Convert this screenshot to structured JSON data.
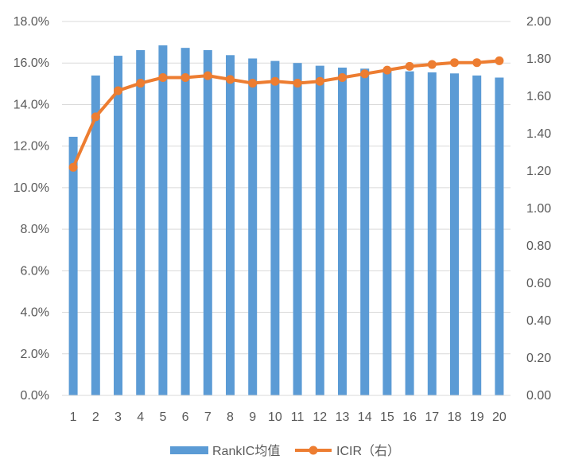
{
  "chart_data": {
    "type": "bar",
    "title": "",
    "xlabel": "",
    "ylabel": "",
    "categories": [
      "1",
      "2",
      "3",
      "4",
      "5",
      "6",
      "7",
      "8",
      "9",
      "10",
      "11",
      "12",
      "13",
      "14",
      "15",
      "16",
      "17",
      "18",
      "19",
      "20"
    ],
    "series": [
      {
        "name": "RankIC均值",
        "type": "bar",
        "axis": "left",
        "color": "#5B9BD5",
        "values": [
          12.45,
          15.4,
          16.35,
          16.62,
          16.85,
          16.73,
          16.62,
          16.38,
          16.22,
          16.1,
          16.0,
          15.87,
          15.78,
          15.73,
          15.65,
          15.6,
          15.55,
          15.5,
          15.4,
          15.3
        ]
      },
      {
        "name": "ICIR（右）",
        "type": "line",
        "axis": "right",
        "color": "#ED7D31",
        "values": [
          1.22,
          1.49,
          1.63,
          1.67,
          1.7,
          1.7,
          1.71,
          1.69,
          1.67,
          1.68,
          1.67,
          1.68,
          1.7,
          1.72,
          1.74,
          1.76,
          1.77,
          1.78,
          1.78,
          1.79
        ]
      }
    ],
    "y_left": {
      "min": 0,
      "max": 18,
      "ticks": [
        "0.0%",
        "2.0%",
        "4.0%",
        "6.0%",
        "8.0%",
        "10.0%",
        "12.0%",
        "14.0%",
        "16.0%",
        "18.0%"
      ]
    },
    "y_right": {
      "min": 0,
      "max": 2,
      "ticks": [
        "0.00",
        "0.20",
        "0.40",
        "0.60",
        "0.80",
        "1.00",
        "1.20",
        "1.40",
        "1.60",
        "1.80",
        "2.00"
      ]
    },
    "grid": true,
    "legend": "bottom-center"
  }
}
